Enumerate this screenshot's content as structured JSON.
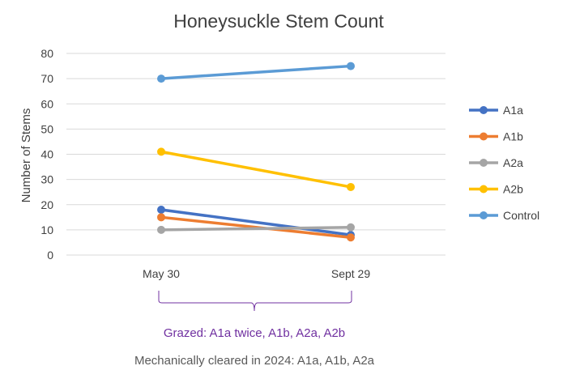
{
  "chart_data": {
    "type": "line",
    "title": "Honeysuckle Stem Count",
    "xlabel": "",
    "ylabel": "Number of Stems",
    "categories": [
      "May 30",
      "Sept 29"
    ],
    "ylim": [
      0,
      80
    ],
    "yticks": [
      0,
      10,
      20,
      30,
      40,
      50,
      60,
      70,
      80
    ],
    "grid": true,
    "legend_position": "right",
    "series": [
      {
        "name": "A1a",
        "values": [
          18,
          8
        ],
        "color": "#4472C4"
      },
      {
        "name": "A1b",
        "values": [
          15,
          7
        ],
        "color": "#ED7D31"
      },
      {
        "name": "A2a",
        "values": [
          10,
          11
        ],
        "color": "#A5A5A5"
      },
      {
        "name": "A2b",
        "values": [
          41,
          27
        ],
        "color": "#FFC000"
      },
      {
        "name": "Control",
        "values": [
          70,
          75
        ],
        "color": "#5B9BD5"
      }
    ],
    "annotations": [
      {
        "text": "Grazed: A1a twice, A1b, A2a, A2b",
        "color": "#7030A0"
      },
      {
        "text": "Mechanically cleared in 2024: A1a, A1b, A2a",
        "color": "#595959"
      }
    ]
  }
}
